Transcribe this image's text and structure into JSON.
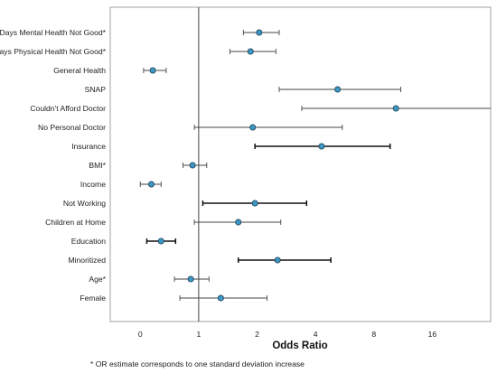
{
  "chart_data": {
    "type": "scatter",
    "subtype": "forest-plot",
    "title": "",
    "xlabel": "Odds Ratio",
    "ylabel": "",
    "x_scale": "log2",
    "xlim": [
      0.35,
      32
    ],
    "x_ticks": [
      {
        "value": 0.5,
        "label": "0"
      },
      {
        "value": 1,
        "label": "1"
      },
      {
        "value": 2,
        "label": "2"
      },
      {
        "value": 4,
        "label": "4"
      },
      {
        "value": 8,
        "label": "8"
      },
      {
        "value": 16,
        "label": "16"
      }
    ],
    "reference_line": 1,
    "grid": false,
    "footnote": "* OR estimate corresponds to one standard deviation increase",
    "marker_color": "#3d97c4",
    "rows": [
      {
        "label": "Days Mental Health Not Good*",
        "or": 2.05,
        "lower": 1.7,
        "upper": 2.6,
        "bold": false
      },
      {
        "label": "Days Physical Health Not Good*",
        "or": 1.85,
        "lower": 1.45,
        "upper": 2.5,
        "bold": false
      },
      {
        "label": "General Health",
        "or": 0.58,
        "lower": 0.52,
        "upper": 0.68,
        "bold": false
      },
      {
        "label": "SNAP",
        "or": 5.2,
        "lower": 2.6,
        "upper": 11.0,
        "bold": false
      },
      {
        "label": "Couldn't Afford Doctor",
        "or": 10.4,
        "lower": 3.4,
        "upper": 32.0,
        "bold": false
      },
      {
        "label": "No Personal Doctor",
        "or": 1.9,
        "lower": 0.95,
        "upper": 5.5,
        "bold": false
      },
      {
        "label": "Insurance",
        "or": 4.3,
        "lower": 1.95,
        "upper": 9.7,
        "bold": true
      },
      {
        "label": "BMI*",
        "or": 0.93,
        "lower": 0.83,
        "upper": 1.1,
        "bold": false
      },
      {
        "label": "Income",
        "or": 0.57,
        "lower": 0.5,
        "upper": 0.64,
        "bold": false
      },
      {
        "label": "Not Working",
        "or": 1.95,
        "lower": 1.05,
        "upper": 3.6,
        "bold": true
      },
      {
        "label": "Children at Home",
        "or": 1.6,
        "lower": 0.95,
        "upper": 2.65,
        "bold": false
      },
      {
        "label": "Education",
        "or": 0.64,
        "lower": 0.54,
        "upper": 0.76,
        "bold": true
      },
      {
        "label": "Minoritized",
        "or": 2.55,
        "lower": 1.6,
        "upper": 4.8,
        "bold": true
      },
      {
        "label": "Age*",
        "or": 0.91,
        "lower": 0.75,
        "upper": 1.13,
        "bold": false
      },
      {
        "label": "Female",
        "or": 1.3,
        "lower": 0.8,
        "upper": 2.25,
        "bold": false
      }
    ]
  }
}
